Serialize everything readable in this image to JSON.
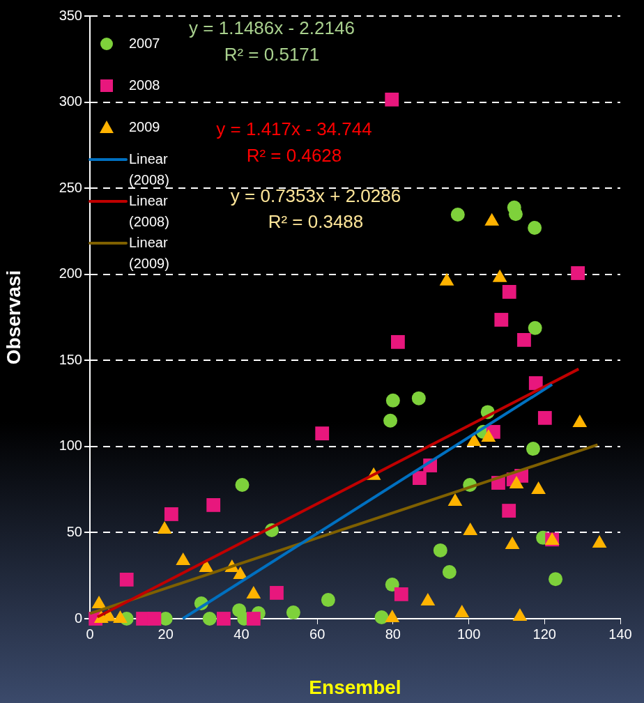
{
  "chart_data": {
    "type": "scatter",
    "xlabel": "Ensembel",
    "ylabel": "Observasi",
    "xlim": [
      0,
      140
    ],
    "xticks": [
      0,
      20,
      40,
      60,
      80,
      100,
      120,
      140
    ],
    "ylim": [
      0,
      350
    ],
    "yticks": [
      0,
      50,
      100,
      150,
      200,
      250,
      300,
      350
    ],
    "grid": "y",
    "legend": "top left",
    "series": [
      {
        "name": "2007",
        "type": "scatter",
        "marker": "circle",
        "color": "#7ed13b",
        "x": [
          97.1,
          112,
          112.4,
          117.4,
          117.5,
          86.8,
          80,
          79.3,
          105,
          103.8,
          117,
          40.2,
          48,
          100.3,
          119.6,
          92.5,
          94.9,
          122.9,
          79.8,
          29.4,
          62.9,
          53.7,
          39.4,
          44.5,
          77,
          31.6,
          40.7,
          9.7,
          20
        ],
        "values": [
          234.7,
          238.8,
          235,
          227,
          168.8,
          128,
          126.7,
          115,
          120,
          108.5,
          98.7,
          77.7,
          51.4,
          77.7,
          47,
          39.7,
          27.1,
          23,
          19.8,
          8.9,
          10.9,
          3.6,
          4.9,
          3.2,
          0.8,
          0,
          0,
          0,
          0
        ]
      },
      {
        "name": "2008",
        "type": "scatter",
        "marker": "square",
        "color": "#e8177d",
        "x": [
          79.7,
          128.8,
          110.7,
          108.6,
          114.6,
          81.3,
          117.7,
          61.3,
          120.1,
          106.5,
          89.8,
          87,
          107.8,
          111.8,
          113.9,
          110.6,
          122,
          32.6,
          21.5,
          9.7,
          49.3,
          82.2,
          1.5,
          14,
          17,
          35.3,
          43.2
        ],
        "values": [
          301.5,
          200.7,
          189.8,
          173.6,
          161.9,
          160.7,
          136.8,
          107.6,
          116.6,
          108.5,
          89,
          81.7,
          78.9,
          80.9,
          83,
          62.7,
          46,
          66,
          60.7,
          22.7,
          15,
          14.2,
          0,
          0,
          0,
          0,
          0
        ]
      },
      {
        "name": "2009",
        "type": "scatter",
        "marker": "triangle",
        "color": "#ffb300",
        "x": [
          106.1,
          94.2,
          108.2,
          129.3,
          101.4,
          105.2,
          74.9,
          112.6,
          96.4,
          118.4,
          100.4,
          111.5,
          134.5,
          122,
          19.7,
          24.6,
          30.7,
          37.5,
          39.7,
          43.2,
          89.2,
          98.2,
          79.8,
          113.5,
          2.4,
          3,
          5,
          8
        ],
        "values": [
          230.7,
          195.9,
          198,
          113.7,
          102.8,
          105.2,
          83,
          78.1,
          68,
          74.9,
          51,
          42.9,
          43.7,
          45.3,
          51.8,
          33.6,
          29.5,
          29.5,
          25.5,
          14.2,
          10.1,
          3.2,
          0.4,
          1.2,
          8.5,
          0,
          1,
          0
        ]
      },
      {
        "name": "Linear (2008)",
        "type": "line",
        "marker": "none",
        "color": "#0070c0",
        "x": [
          24.5,
          122
        ],
        "values": [
          0,
          136
        ]
      },
      {
        "name": "Linear (2008)",
        "type": "line",
        "marker": "none",
        "color": "#c00000",
        "x": [
          2,
          129
        ],
        "values": [
          1,
          145
        ]
      },
      {
        "name": "Linear (2009)",
        "type": "line",
        "marker": "none",
        "color": "#7f6000",
        "x": [
          0,
          134
        ],
        "values": [
          3,
          101
        ]
      }
    ],
    "annotations": [
      "y = 1.1486x - 2.2146",
      "R² = 0.5171",
      "y = 1.417x - 34.744",
      "R² = 0.4628",
      "y = 0.7353x + 2.0286",
      "R² = 0.3488"
    ]
  }
}
